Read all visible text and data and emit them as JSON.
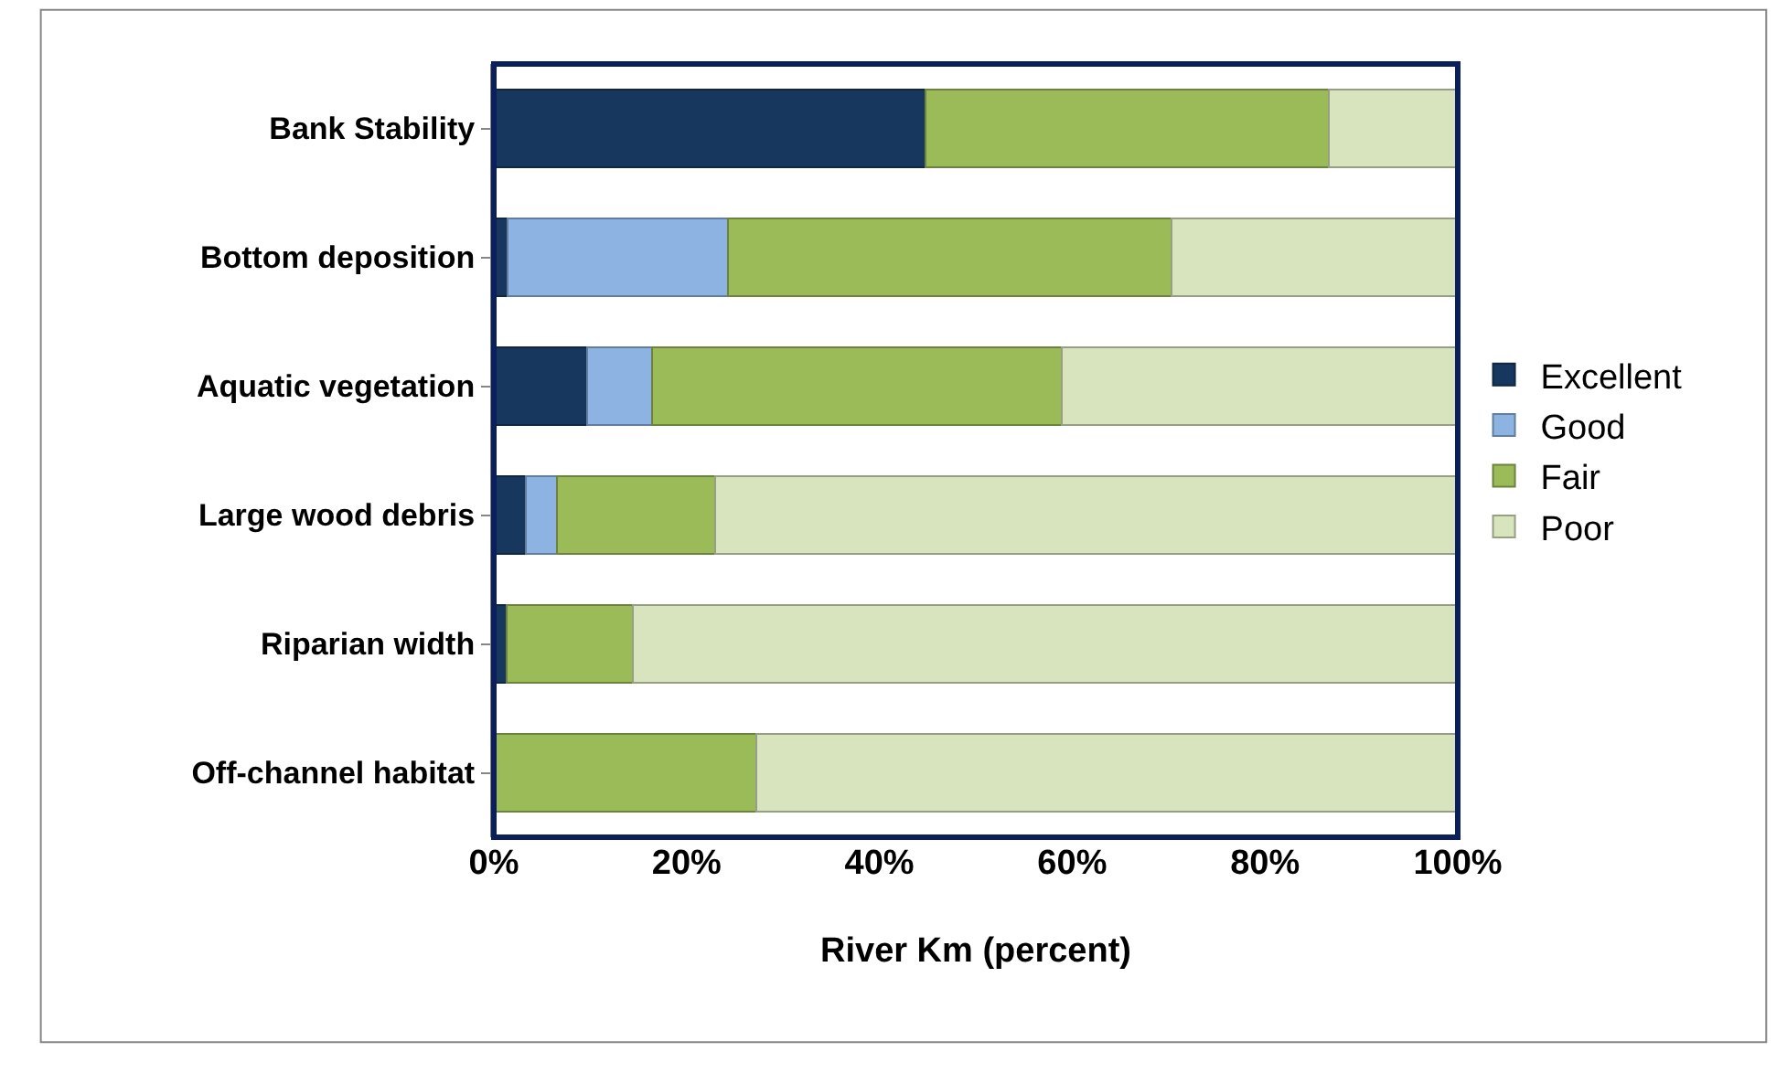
{
  "chart_data": {
    "type": "bar",
    "orientation": "horizontal",
    "stacked": true,
    "xlabel": "River Km (percent)",
    "categories": [
      "Bank Stability",
      "Bottom deposition",
      "Aquatic vegetation",
      "Large wood debris",
      "Riparian width",
      "Off-channel habitat"
    ],
    "series": [
      {
        "name": "Excellent",
        "color": "#17375e",
        "values": [
          44.8,
          1.4,
          9.7,
          3.3,
          1.3,
          0
        ]
      },
      {
        "name": "Good",
        "color": "#8db3e2",
        "values": [
          0,
          22.9,
          6.7,
          3.2,
          0,
          0
        ]
      },
      {
        "name": "Fair",
        "color": "#9bbb59",
        "values": [
          41.8,
          46.0,
          42.5,
          16.5,
          13.1,
          27.2
        ]
      },
      {
        "name": "Poor",
        "color": "#d7e4bd",
        "values": [
          13.4,
          29.7,
          41.1,
          77.0,
          85.6,
          72.8
        ]
      }
    ],
    "xlim": [
      0,
      100
    ],
    "xticks": [
      {
        "value": 0,
        "label": "0%"
      },
      {
        "value": 20,
        "label": "20%"
      },
      {
        "value": 40,
        "label": "40%"
      },
      {
        "value": 60,
        "label": "60%"
      },
      {
        "value": 80,
        "label": "80%"
      },
      {
        "value": 100,
        "label": "100%"
      }
    ],
    "legend": "right"
  }
}
